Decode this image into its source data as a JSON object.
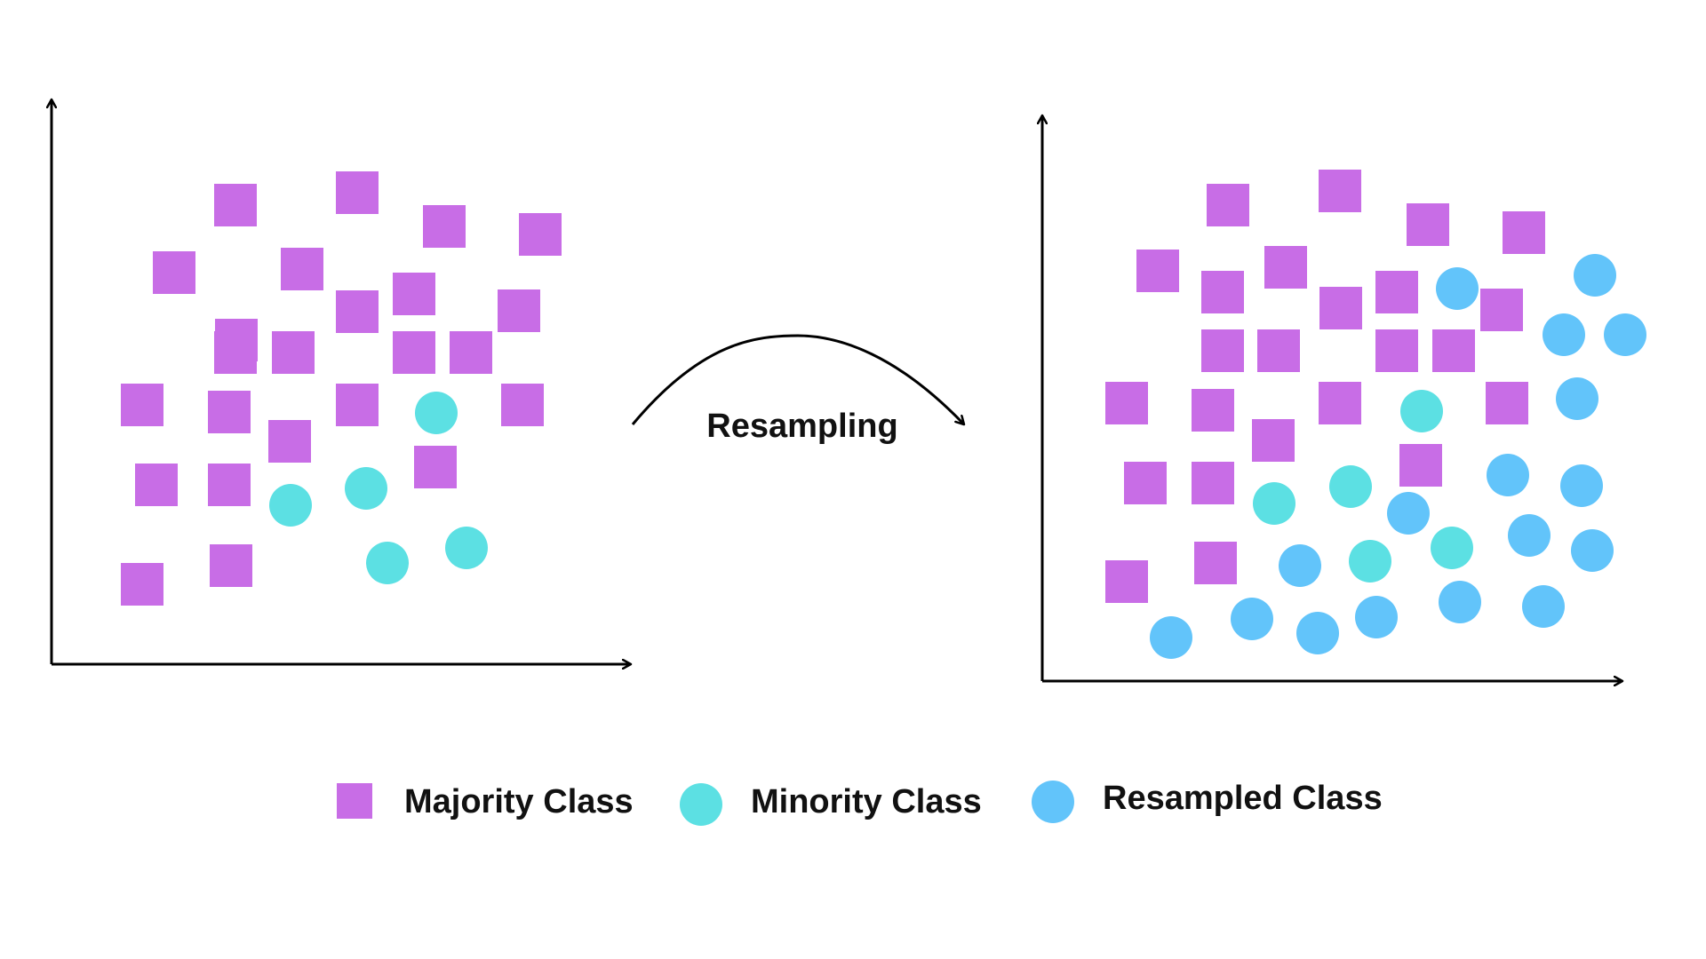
{
  "transition_label": "Resampling",
  "legend": {
    "items": [
      {
        "label": "Majority Class",
        "shape": "square",
        "color": "#c86de6"
      },
      {
        "label": "Minority Class",
        "shape": "circle",
        "color": "#5ce0e3"
      },
      {
        "label": "Resampled Class",
        "shape": "circle",
        "color": "#62c4fa"
      }
    ]
  },
  "colors": {
    "axis": "#000000",
    "majority": "#c86de6",
    "minority": "#5ce0e3",
    "resampled": "#62c4fa"
  }
}
